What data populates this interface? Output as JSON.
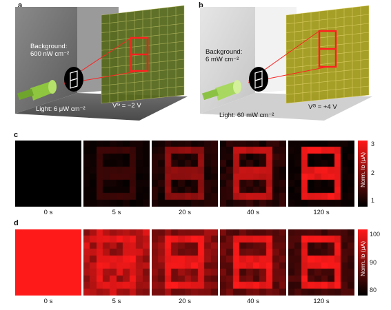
{
  "panels": {
    "a": {
      "letter": "a",
      "background_label_line1": "Background:",
      "background_label_line2": "600 nW cm⁻²",
      "light_label": "Light: 6 μW cm⁻²",
      "gate_label": "Vᴳ = −2 V"
    },
    "b": {
      "letter": "b",
      "background_label_line1": "Background:",
      "background_label_line2": "6 mW cm⁻²",
      "light_label": "Light: 60 mW cm⁻²",
      "gate_label": "Vᴳ = +4 V"
    },
    "c": {
      "letter": "c",
      "times": [
        "0 s",
        "5 s",
        "20 s",
        "40 s",
        "120 s"
      ],
      "colorbar_label": "Norm. Iᴅ (μA)",
      "colorbar_ticks": [
        "3",
        "2",
        "1"
      ],
      "intensity": [
        0.0,
        0.25,
        0.6,
        0.8,
        1.0
      ],
      "background_level": [
        0.0,
        0.06,
        0.12,
        0.15,
        0.05
      ]
    },
    "d": {
      "letter": "d",
      "times": [
        "0 s",
        "5 s",
        "20 s",
        "40 s",
        "120 s"
      ],
      "colorbar_label": "Norm. Iᴅ (μA)",
      "colorbar_ticks": [
        "100",
        "90",
        "80"
      ],
      "intensity": [
        1.0,
        1.0,
        1.0,
        1.0,
        1.0
      ],
      "background_level": [
        1.0,
        0.82,
        0.6,
        0.45,
        0.3
      ]
    }
  },
  "colors": {
    "red": "#ff1a1a",
    "wall_dark": "#707070",
    "wall_light": "#d8d8d8",
    "screen_green": "#5a6e1e",
    "screen_yellow": "#9a9a1a",
    "torch_green": "#8ec63f"
  }
}
